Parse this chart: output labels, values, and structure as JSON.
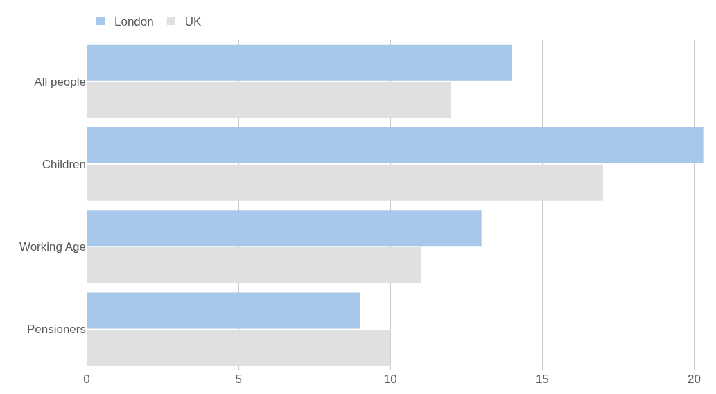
{
  "chart_data": {
    "type": "bar",
    "orientation": "horizontal",
    "categories": [
      "All people",
      "Children",
      "Working Age",
      "Pensioners"
    ],
    "series": [
      {
        "name": "London",
        "color": "#a7c8ea",
        "values": [
          14,
          20.3,
          13,
          9
        ]
      },
      {
        "name": "UK",
        "color": "#e0e0e0",
        "values": [
          12,
          17,
          11,
          10
        ]
      }
    ],
    "xlim": [
      0,
      20.4
    ],
    "xticks": [
      0,
      5,
      10,
      15,
      20
    ],
    "grid": "x",
    "legend": "top left"
  }
}
